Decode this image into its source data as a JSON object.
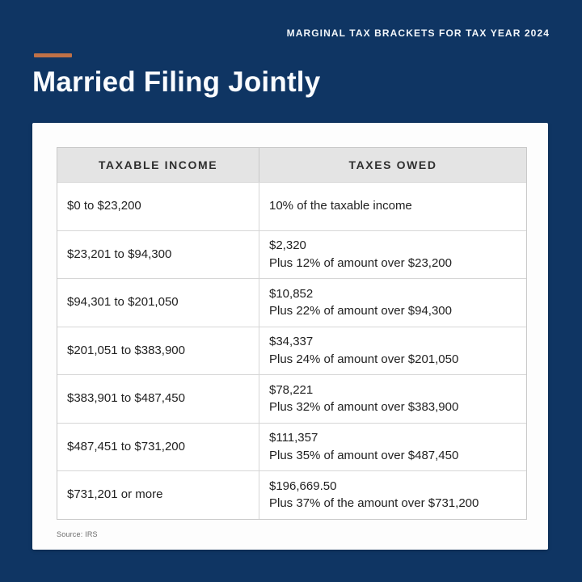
{
  "header": {
    "eyebrow": "MARGINAL TAX BRACKETS FOR TAX YEAR 2024",
    "title": "Married Filing Jointly"
  },
  "table": {
    "columns": [
      "TAXABLE INCOME",
      "TAXES OWED"
    ],
    "rows": [
      {
        "income": "$0 to $23,200",
        "owed": [
          "10% of the taxable income"
        ]
      },
      {
        "income": "$23,201 to $94,300",
        "owed": [
          "$2,320",
          "Plus 12% of amount over $23,200"
        ]
      },
      {
        "income": "$94,301 to $201,050",
        "owed": [
          "$10,852",
          "Plus 22% of amount over $94,300"
        ]
      },
      {
        "income": "$201,051 to $383,900",
        "owed": [
          "$34,337",
          "Plus 24% of amount over $201,050"
        ]
      },
      {
        "income": "$383,901 to $487,450",
        "owed": [
          "$78,221",
          "Plus 32% of amount over $383,900"
        ]
      },
      {
        "income": "$487,451 to $731,200",
        "owed": [
          "$111,357",
          "Plus 35% of amount over $487,450"
        ]
      },
      {
        "income": "$731,201 or more",
        "owed": [
          "$196,669.50",
          "Plus 37% of the amount over $731,200"
        ]
      }
    ]
  },
  "footer": {
    "source": "Source: IRS"
  },
  "colors": {
    "background": "#0f3563",
    "accent": "#c07147",
    "card": "#fdfdfd",
    "table_header_bg": "#e4e4e4",
    "table_border": "#d6d6d6",
    "text_dark": "#212121",
    "text_light": "#fafcff"
  },
  "chart_data": {
    "type": "table",
    "title": "Married Filing Jointly",
    "subtitle": "MARGINAL TAX BRACKETS FOR TAX YEAR 2024",
    "columns": [
      "TAXABLE INCOME",
      "TAXES OWED"
    ],
    "rows": [
      [
        "$0 to $23,200",
        "10% of the taxable income"
      ],
      [
        "$23,201 to $94,300",
        "$2,320 Plus 12% of amount over $23,200"
      ],
      [
        "$94,301 to $201,050",
        "$10,852 Plus 22% of amount over $94,300"
      ],
      [
        "$201,051 to $383,900",
        "$34,337 Plus 24% of amount over $201,050"
      ],
      [
        "$383,901 to $487,450",
        "$78,221 Plus 32% of amount over $383,900"
      ],
      [
        "$487,451 to $731,200",
        "$111,357 Plus 35% of amount over $487,450"
      ],
      [
        "$731,201 or more",
        "$196,669.50 Plus 37% of the amount over $731,200"
      ]
    ],
    "brackets": [
      {
        "rate_pct": 10,
        "lower": 0,
        "upper": 23200,
        "base_tax": 0
      },
      {
        "rate_pct": 12,
        "lower": 23201,
        "upper": 94300,
        "base_tax": 2320
      },
      {
        "rate_pct": 22,
        "lower": 94301,
        "upper": 201050,
        "base_tax": 10852
      },
      {
        "rate_pct": 24,
        "lower": 201051,
        "upper": 383900,
        "base_tax": 34337
      },
      {
        "rate_pct": 32,
        "lower": 383901,
        "upper": 487450,
        "base_tax": 78221
      },
      {
        "rate_pct": 35,
        "lower": 487451,
        "upper": 731200,
        "base_tax": 111357
      },
      {
        "rate_pct": 37,
        "lower": 731201,
        "upper": null,
        "base_tax": 196669.5
      }
    ],
    "source": "Source: IRS"
  }
}
